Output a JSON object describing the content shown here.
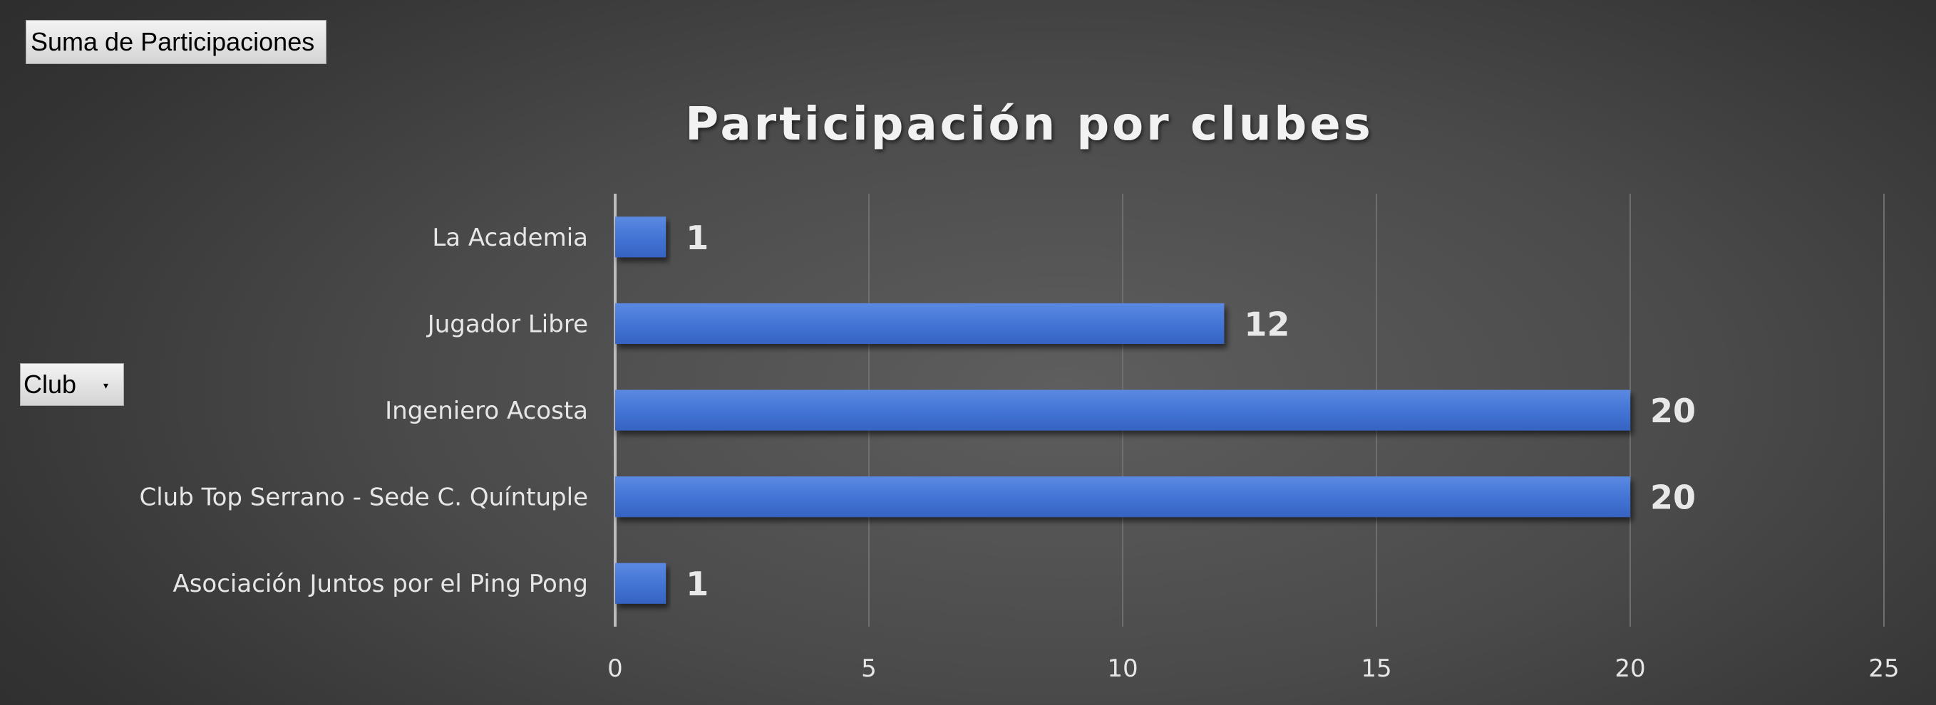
{
  "pivot": {
    "values_field": "Suma de Participaciones",
    "axis_field": "Club"
  },
  "chart_data": {
    "type": "bar",
    "orientation": "horizontal",
    "title": "Participación por clubes",
    "categories": [
      "La Academia",
      "Jugador Libre",
      "Ingeniero Acosta",
      "Club Top Serrano - Sede C. Quíntuple",
      "Asociación Juntos por el Ping Pong"
    ],
    "values": [
      1,
      12,
      20,
      20,
      1
    ],
    "xlim": [
      0,
      25
    ],
    "xticks": [
      "0",
      "5",
      "10",
      "15",
      "20",
      "25"
    ],
    "grid": true,
    "legend": "none",
    "colors": {
      "bar": "#3f6fd0",
      "bar_top": "#5a88e0",
      "grid": "#6e6e6e",
      "axis": "#bdbdbd"
    }
  }
}
